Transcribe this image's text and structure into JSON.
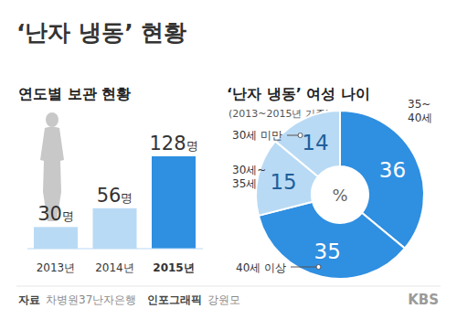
{
  "title": "‘난자 냉동’ 현황",
  "chart_data": [
    {
      "type": "bar",
      "title": "연도별 보관 현황",
      "categories": [
        "2013년",
        "2014년",
        "2015년"
      ],
      "values": [
        30,
        56,
        128
      ],
      "value_labels": [
        "30명",
        "56명",
        "128명"
      ],
      "colors": [
        "#b9daf4",
        "#b9daf4",
        "#2f8fe1"
      ],
      "ylim": [
        0,
        128
      ],
      "data_labels": true,
      "tick_labels": "x"
    },
    {
      "type": "pie",
      "title": "‘난자 냉동’ 여성 나이",
      "subtitle": "(2013~2015년 기준)",
      "categories": [
        "35~40세",
        "40세 이상",
        "30세~35세",
        "30세 미만"
      ],
      "values": [
        36,
        35,
        15,
        14
      ],
      "colors": [
        "#2f8fe1",
        "#2f8fe1",
        "#b9daf4",
        "#b9daf4"
      ],
      "annotation": "%",
      "data_labels": true
    }
  ],
  "footer": {
    "source_label": "자료",
    "source": "차병원37난자은행",
    "credit_label": "인포그래픽",
    "credit": "강원모",
    "logo": "KBS"
  }
}
